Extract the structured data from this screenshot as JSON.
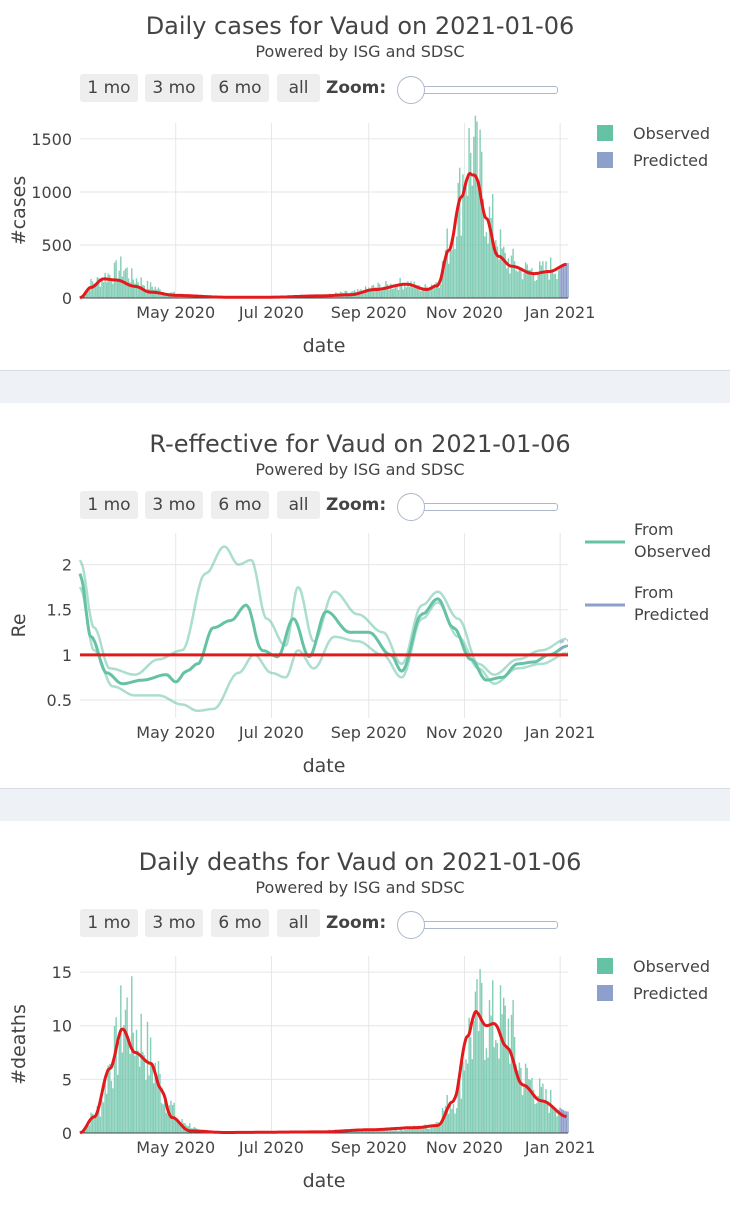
{
  "panels": [
    {
      "title": "Daily cases for Vaud on 2021-01-06",
      "subtitle": "Powered by ISG and SDSC",
      "buttons": [
        "1 mo",
        "3 mo",
        "6 mo",
        "all"
      ],
      "zoom_label": "Zoom:"
    },
    {
      "title": "R-effective for Vaud on 2021-01-06",
      "subtitle": "Powered by ISG and SDSC",
      "buttons": [
        "1 mo",
        "3 mo",
        "6 mo",
        "all"
      ],
      "zoom_label": "Zoom:"
    },
    {
      "title": "Daily deaths for Vaud on 2021-01-06",
      "subtitle": "Powered by ISG and SDSC",
      "buttons": [
        "1 mo",
        "3 mo",
        "6 mo",
        "all"
      ],
      "zoom_label": "Zoom:"
    }
  ],
  "colors": {
    "observed": "#66c2a5",
    "predicted": "#8da0cb",
    "fit": "#e31a1c",
    "ref": "#e31a1c"
  },
  "chart_data": [
    {
      "type": "bar",
      "title": "Daily cases for Vaud on 2021-01-06",
      "xlabel": "date",
      "ylabel": "#cases",
      "x_range": [
        "2020-03-01",
        "2021-01-06"
      ],
      "ylim": [
        0,
        1650
      ],
      "yticks": [
        0,
        500,
        1000,
        1500
      ],
      "xticks": [
        {
          "date": "2020-05-01",
          "label": "May 2020"
        },
        {
          "date": "2020-07-01",
          "label": "Jul 2020"
        },
        {
          "date": "2020-09-01",
          "label": "Sep 2020"
        },
        {
          "date": "2020-11-01",
          "label": "Nov 2020"
        },
        {
          "date": "2021-01-01",
          "label": "Jan 2021"
        }
      ],
      "legend": [
        "Observed",
        "Predicted"
      ],
      "legend_position": "right",
      "observed_keypoints": [
        [
          "2020-03-01",
          10
        ],
        [
          "2020-03-10",
          150
        ],
        [
          "2020-03-20",
          220
        ],
        [
          "2020-03-28",
          280
        ],
        [
          "2020-04-05",
          180
        ],
        [
          "2020-04-15",
          110
        ],
        [
          "2020-04-25",
          50
        ],
        [
          "2020-05-10",
          15
        ],
        [
          "2020-06-01",
          5
        ],
        [
          "2020-07-01",
          8
        ],
        [
          "2020-08-01",
          25
        ],
        [
          "2020-08-20",
          50
        ],
        [
          "2020-09-10",
          110
        ],
        [
          "2020-09-25",
          140
        ],
        [
          "2020-10-05",
          90
        ],
        [
          "2020-10-15",
          150
        ],
        [
          "2020-10-22",
          500
        ],
        [
          "2020-10-28",
          900
        ],
        [
          "2020-11-02",
          1250
        ],
        [
          "2020-11-06",
          1400
        ],
        [
          "2020-11-10",
          1150
        ],
        [
          "2020-11-18",
          700
        ],
        [
          "2020-11-28",
          350
        ],
        [
          "2020-12-10",
          260
        ],
        [
          "2020-12-20",
          250
        ],
        [
          "2020-12-30",
          300
        ],
        [
          "2021-01-06",
          330
        ]
      ],
      "predicted_range": [
        "2021-01-01",
        "2021-01-06"
      ],
      "fit_keypoints": [
        [
          "2020-03-01",
          0
        ],
        [
          "2020-03-08",
          100
        ],
        [
          "2020-03-16",
          180
        ],
        [
          "2020-03-24",
          170
        ],
        [
          "2020-04-05",
          110
        ],
        [
          "2020-04-15",
          55
        ],
        [
          "2020-05-01",
          25
        ],
        [
          "2020-06-01",
          8
        ],
        [
          "2020-07-01",
          8
        ],
        [
          "2020-08-01",
          20
        ],
        [
          "2020-08-20",
          30
        ],
        [
          "2020-09-05",
          80
        ],
        [
          "2020-09-25",
          130
        ],
        [
          "2020-10-08",
          80
        ],
        [
          "2020-10-15",
          120
        ],
        [
          "2020-10-22",
          450
        ],
        [
          "2020-10-30",
          950
        ],
        [
          "2020-11-04",
          1170
        ],
        [
          "2020-11-08",
          1150
        ],
        [
          "2020-11-15",
          750
        ],
        [
          "2020-11-22",
          400
        ],
        [
          "2020-12-01",
          300
        ],
        [
          "2020-12-15",
          230
        ],
        [
          "2020-12-25",
          250
        ],
        [
          "2021-01-06",
          320
        ]
      ]
    },
    {
      "type": "line",
      "title": "R-effective for Vaud on 2021-01-06",
      "xlabel": "date",
      "ylabel": "Re",
      "x_range": [
        "2020-03-01",
        "2021-01-06"
      ],
      "ylim": [
        0.3,
        2.35
      ],
      "yticks": [
        0.5,
        1,
        1.5,
        2
      ],
      "ytick_labels": [
        "0.5",
        "1",
        "1.5",
        "2"
      ],
      "xticks": [
        {
          "date": "2020-05-01",
          "label": "May 2020"
        },
        {
          "date": "2020-07-01",
          "label": "Jul 2020"
        },
        {
          "date": "2020-09-01",
          "label": "Sep 2020"
        },
        {
          "date": "2020-11-01",
          "label": "Nov 2020"
        },
        {
          "date": "2021-01-01",
          "label": "Jan 2021"
        }
      ],
      "reference_line": 1,
      "legend": [
        "From Observed",
        "From Predicted"
      ],
      "legend_position": "right",
      "series": [
        {
          "role": "median",
          "points": [
            [
              "2020-03-01",
              1.9
            ],
            [
              "2020-03-08",
              1.2
            ],
            [
              "2020-03-18",
              0.8
            ],
            [
              "2020-03-28",
              0.68
            ],
            [
              "2020-04-10",
              0.72
            ],
            [
              "2020-04-25",
              0.78
            ],
            [
              "2020-05-01",
              0.7
            ],
            [
              "2020-05-08",
              0.82
            ],
            [
              "2020-05-15",
              0.9
            ],
            [
              "2020-05-25",
              1.3
            ],
            [
              "2020-06-05",
              1.38
            ],
            [
              "2020-06-15",
              1.55
            ],
            [
              "2020-06-25",
              1.05
            ],
            [
              "2020-07-05",
              0.98
            ],
            [
              "2020-07-15",
              1.4
            ],
            [
              "2020-07-25",
              0.98
            ],
            [
              "2020-08-05",
              1.48
            ],
            [
              "2020-08-20",
              1.25
            ],
            [
              "2020-09-01",
              1.25
            ],
            [
              "2020-09-15",
              1.0
            ],
            [
              "2020-09-22",
              0.82
            ],
            [
              "2020-10-05",
              1.45
            ],
            [
              "2020-10-15",
              1.62
            ],
            [
              "2020-10-25",
              1.3
            ],
            [
              "2020-11-05",
              0.95
            ],
            [
              "2020-11-15",
              0.72
            ],
            [
              "2020-11-25",
              0.75
            ],
            [
              "2020-12-05",
              0.9
            ],
            [
              "2020-12-15",
              0.92
            ],
            [
              "2020-12-25",
              1.0
            ],
            [
              "2021-01-06",
              1.1
            ]
          ]
        },
        {
          "role": "upper",
          "points": [
            [
              "2020-03-01",
              2.05
            ],
            [
              "2020-03-10",
              1.3
            ],
            [
              "2020-03-20",
              0.85
            ],
            [
              "2020-04-05",
              0.78
            ],
            [
              "2020-04-20",
              0.95
            ],
            [
              "2020-05-05",
              1.05
            ],
            [
              "2020-05-20",
              1.9
            ],
            [
              "2020-06-01",
              2.2
            ],
            [
              "2020-06-10",
              2.0
            ],
            [
              "2020-06-18",
              2.05
            ],
            [
              "2020-06-28",
              1.4
            ],
            [
              "2020-07-10",
              1.1
            ],
            [
              "2020-07-18",
              1.75
            ],
            [
              "2020-07-28",
              1.15
            ],
            [
              "2020-08-10",
              1.7
            ],
            [
              "2020-08-25",
              1.45
            ],
            [
              "2020-09-10",
              1.25
            ],
            [
              "2020-09-22",
              0.9
            ],
            [
              "2020-10-05",
              1.55
            ],
            [
              "2020-10-15",
              1.7
            ],
            [
              "2020-10-28",
              1.4
            ],
            [
              "2020-11-10",
              0.9
            ],
            [
              "2020-11-20",
              0.78
            ],
            [
              "2020-12-05",
              0.95
            ],
            [
              "2020-12-20",
              1.05
            ],
            [
              "2021-01-06",
              1.18
            ]
          ]
        },
        {
          "role": "lower",
          "points": [
            [
              "2020-03-01",
              1.75
            ],
            [
              "2020-03-10",
              1.05
            ],
            [
              "2020-03-22",
              0.65
            ],
            [
              "2020-04-05",
              0.55
            ],
            [
              "2020-04-20",
              0.55
            ],
            [
              "2020-05-05",
              0.45
            ],
            [
              "2020-05-15",
              0.38
            ],
            [
              "2020-05-25",
              0.4
            ],
            [
              "2020-06-10",
              0.8
            ],
            [
              "2020-06-20",
              1.0
            ],
            [
              "2020-07-01",
              0.8
            ],
            [
              "2020-07-10",
              0.75
            ],
            [
              "2020-07-18",
              1.05
            ],
            [
              "2020-07-28",
              0.85
            ],
            [
              "2020-08-10",
              1.2
            ],
            [
              "2020-08-25",
              1.15
            ],
            [
              "2020-09-10",
              1.0
            ],
            [
              "2020-09-22",
              0.75
            ],
            [
              "2020-10-05",
              1.4
            ],
            [
              "2020-10-15",
              1.58
            ],
            [
              "2020-10-28",
              1.2
            ],
            [
              "2020-11-10",
              0.85
            ],
            [
              "2020-11-20",
              0.68
            ],
            [
              "2020-12-05",
              0.85
            ],
            [
              "2020-12-20",
              0.9
            ],
            [
              "2021-01-06",
              1.02
            ]
          ]
        }
      ]
    },
    {
      "type": "bar",
      "title": "Daily deaths for Vaud on 2021-01-06",
      "xlabel": "date",
      "ylabel": "#deaths",
      "x_range": [
        "2020-03-01",
        "2021-01-06"
      ],
      "ylim": [
        0,
        16.5
      ],
      "yticks": [
        0,
        5,
        10,
        15
      ],
      "xticks": [
        {
          "date": "2020-05-01",
          "label": "May 2020"
        },
        {
          "date": "2020-07-01",
          "label": "Jul 2020"
        },
        {
          "date": "2020-09-01",
          "label": "Sep 2020"
        },
        {
          "date": "2020-11-01",
          "label": "Nov 2020"
        },
        {
          "date": "2021-01-01",
          "label": "Jan 2021"
        }
      ],
      "legend": [
        "Observed",
        "Predicted"
      ],
      "legend_position": "right",
      "observed_keypoints": [
        [
          "2020-03-01",
          0
        ],
        [
          "2020-03-12",
          2
        ],
        [
          "2020-03-22",
          7
        ],
        [
          "2020-03-30",
          11
        ],
        [
          "2020-04-08",
          9
        ],
        [
          "2020-04-18",
          6
        ],
        [
          "2020-04-25",
          3
        ],
        [
          "2020-05-05",
          1
        ],
        [
          "2020-05-20",
          0
        ],
        [
          "2020-09-15",
          0.3
        ],
        [
          "2020-10-10",
          0.6
        ],
        [
          "2020-10-25",
          3
        ],
        [
          "2020-11-05",
          9
        ],
        [
          "2020-11-12",
          11
        ],
        [
          "2020-11-20",
          10
        ],
        [
          "2020-11-28",
          10
        ],
        [
          "2020-12-10",
          5
        ],
        [
          "2020-12-25",
          3
        ],
        [
          "2021-01-06",
          2
        ]
      ],
      "predicted_range": [
        "2021-01-01",
        "2021-01-06"
      ],
      "fit_keypoints": [
        [
          "2020-03-01",
          0
        ],
        [
          "2020-03-10",
          1.5
        ],
        [
          "2020-03-20",
          6
        ],
        [
          "2020-03-28",
          9.7
        ],
        [
          "2020-04-05",
          7.5
        ],
        [
          "2020-04-15",
          6.5
        ],
        [
          "2020-04-22",
          4
        ],
        [
          "2020-04-28",
          1.5
        ],
        [
          "2020-05-10",
          0.2
        ],
        [
          "2020-06-01",
          0.05
        ],
        [
          "2020-08-01",
          0.1
        ],
        [
          "2020-09-01",
          0.3
        ],
        [
          "2020-10-01",
          0.5
        ],
        [
          "2020-10-15",
          0.7
        ],
        [
          "2020-10-25",
          3
        ],
        [
          "2020-11-03",
          9
        ],
        [
          "2020-11-08",
          11.3
        ],
        [
          "2020-11-15",
          10
        ],
        [
          "2020-11-20",
          10.2
        ],
        [
          "2020-11-28",
          8
        ],
        [
          "2020-12-08",
          4.5
        ],
        [
          "2020-12-20",
          3
        ],
        [
          "2021-01-06",
          1.5
        ]
      ]
    }
  ]
}
